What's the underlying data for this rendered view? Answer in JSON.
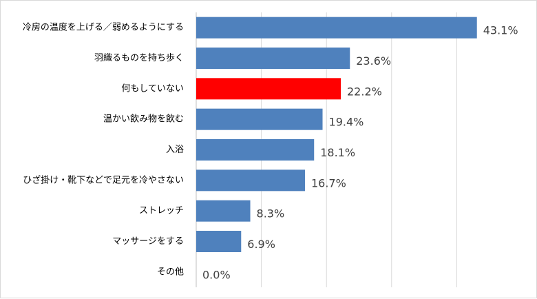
{
  "chart_data": {
    "type": "bar",
    "orientation": "horizontal",
    "categories": [
      "冷房の温度を上げる／弱めるようにする",
      "羽織るものを持ち歩く",
      "何もしていない",
      "温かい飲み物を飲む",
      "入浴",
      "ひざ掛け・靴下などで足元を冷やさない",
      "ストレッチ",
      "マッサージをする",
      "その他"
    ],
    "values": [
      43.1,
      23.6,
      22.2,
      19.4,
      18.1,
      16.7,
      8.3,
      6.9,
      0.0
    ],
    "value_labels": [
      "43.1%",
      "23.6%",
      "22.2%",
      "19.4%",
      "18.1%",
      "16.7%",
      "8.3%",
      "6.9%",
      "0.0%"
    ],
    "bar_colors": [
      "#4f81bd",
      "#4f81bd",
      "#ff0000",
      "#4f81bd",
      "#4f81bd",
      "#4f81bd",
      "#4f81bd",
      "#4f81bd",
      "#4f81bd"
    ],
    "xlim": [
      0,
      45
    ],
    "grid": true,
    "title": "",
    "xlabel": "",
    "ylabel": ""
  }
}
